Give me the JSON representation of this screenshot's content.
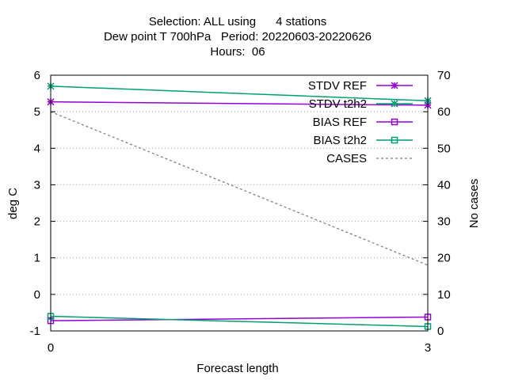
{
  "chart_data": {
    "type": "line",
    "title_lines": [
      "Selection: ALL using      4 stations",
      "Dew point T 700hPa   Period: 20220603-20220626",
      "Hours:  06"
    ],
    "xlabel": "Forecast length",
    "ylabel": "deg C",
    "y2label": "No cases",
    "x": [
      0,
      3
    ],
    "xlim": [
      0,
      3
    ],
    "xticks": [
      "0",
      "3"
    ],
    "ylim": [
      -1,
      6
    ],
    "yticks": [
      "-1",
      "0",
      "1",
      "2",
      "3",
      "4",
      "5",
      "6"
    ],
    "y2lim": [
      0,
      70
    ],
    "y2ticks": [
      "0",
      "10",
      "20",
      "30",
      "40",
      "50",
      "60",
      "70"
    ],
    "grid": "horizontal dotted",
    "legend_position": "top-right",
    "series": [
      {
        "name": "STDV REF",
        "axis": "y",
        "values": [
          5.27,
          5.18
        ],
        "color": "#9400d3",
        "marker": "asterisk",
        "dash": ""
      },
      {
        "name": "STDV t2h2",
        "axis": "y",
        "values": [
          5.7,
          5.3
        ],
        "color": "#009e73",
        "marker": "asterisk",
        "dash": ""
      },
      {
        "name": "BIAS REF",
        "axis": "y",
        "values": [
          -0.72,
          -0.62
        ],
        "color": "#9400d3",
        "marker": "square",
        "dash": ""
      },
      {
        "name": "BIAS t2h2",
        "axis": "y",
        "values": [
          -0.6,
          -0.88
        ],
        "color": "#009e73",
        "marker": "square",
        "dash": ""
      },
      {
        "name": "CASES",
        "axis": "y2",
        "values": [
          60,
          18
        ],
        "color": "#808080",
        "marker": "none",
        "dash": "3,3"
      }
    ]
  }
}
